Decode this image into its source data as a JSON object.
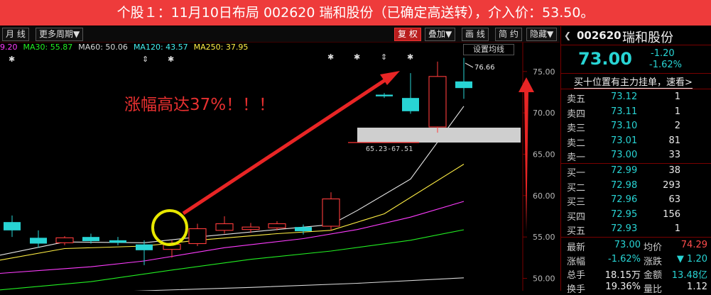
{
  "banner": "个股１：11月10日布局 002620 瑞和股份（已确定高送转），介入价：53.50。",
  "toolbar": {
    "month": "月 线",
    "period": "更多周期▼",
    "fuquan": "复 权",
    "overlay": "叠加▼",
    "draw": "画 线",
    "simple": "简 约",
    "hide": "隐藏▼"
  },
  "ma_legend": [
    {
      "text": "9.20",
      "color": "#ff3cff"
    },
    {
      "text": "MA30: 55.87",
      "color": "#22ee22"
    },
    {
      "text": "MA60: 50.06",
      "color": "#d8d8d8"
    },
    {
      "text": "MA120: 43.57",
      "color": "#44eeee"
    },
    {
      "text": "MA250: 37.95",
      "color": "#ffee44"
    }
  ],
  "set_ma_label": "设置均线",
  "annotation": "涨幅高达37%！！！",
  "gap_label": "65.23-67.51",
  "high_label": "76.66",
  "chart_data": {
    "type": "candlestick",
    "ylim": [
      48.5,
      78.5
    ],
    "yticks": [
      "75.00",
      "70.00",
      "65.00",
      "60.00",
      "55.00",
      "50.00"
    ],
    "yvals": [
      75,
      70,
      65,
      60,
      55,
      50
    ],
    "candles": [
      {
        "o": 56.8,
        "c": 55.8,
        "h": 57.6,
        "l": 55.0,
        "x": 17
      },
      {
        "o": 54.9,
        "c": 54.2,
        "h": 55.8,
        "l": 53.7,
        "x": 54
      },
      {
        "o": 54.3,
        "c": 54.9,
        "h": 55.1,
        "l": 54.0,
        "x": 91
      },
      {
        "o": 55.0,
        "c": 54.5,
        "h": 55.4,
        "l": 54.2,
        "x": 128
      },
      {
        "o": 54.6,
        "c": 54.3,
        "h": 55.0,
        "l": 54.0,
        "x": 166
      },
      {
        "o": 54.1,
        "c": 53.4,
        "h": 54.6,
        "l": 51.6,
        "x": 203
      },
      {
        "o": 53.5,
        "c": 54.1,
        "h": 54.6,
        "l": 52.5,
        "x": 242
      },
      {
        "o": 54.2,
        "c": 56.0,
        "h": 56.6,
        "l": 53.9,
        "x": 278
      },
      {
        "o": 55.8,
        "c": 56.6,
        "h": 57.5,
        "l": 55.4,
        "x": 316
      },
      {
        "o": 55.9,
        "c": 56.2,
        "h": 56.7,
        "l": 55.5,
        "x": 353
      },
      {
        "o": 56.1,
        "c": 56.6,
        "h": 56.9,
        "l": 55.8,
        "x": 390
      },
      {
        "o": 56.2,
        "c": 55.7,
        "h": 56.5,
        "l": 55.3,
        "x": 427
      },
      {
        "o": 56.3,
        "c": 59.6,
        "h": 60.4,
        "l": 55.8,
        "x": 466
      },
      {
        "o": 72.2,
        "c": 72.0,
        "h": 72.4,
        "l": 71.8,
        "x": 541
      },
      {
        "o": 71.8,
        "c": 70.2,
        "h": 74.8,
        "l": 69.9,
        "x": 578
      },
      {
        "o": 68.3,
        "c": 74.4,
        "h": 76.2,
        "l": 67.6,
        "x": 616
      },
      {
        "o": 73.8,
        "c": 73.0,
        "h": 76.66,
        "l": 71.7,
        "x": 653
      }
    ],
    "ma_lines": [
      {
        "name": "MA5",
        "color": "#e8e8e8",
        "pts": [
          [
            0,
            52.8
          ],
          [
            91,
            54.4
          ],
          [
            203,
            54.3
          ],
          [
            278,
            55.0
          ],
          [
            390,
            55.9
          ],
          [
            466,
            56.5
          ],
          [
            503,
            58.2
          ],
          [
            578,
            62.0
          ],
          [
            653,
            70.8
          ]
        ]
      },
      {
        "name": "MA10",
        "color": "#ffee44",
        "pts": [
          [
            0,
            52.2
          ],
          [
            91,
            53.6
          ],
          [
            203,
            53.9
          ],
          [
            278,
            54.6
          ],
          [
            390,
            55.4
          ],
          [
            466,
            55.8
          ],
          [
            541,
            57.8
          ],
          [
            653,
            63.8
          ]
        ]
      },
      {
        "name": "MA20",
        "color": "#ff3cff",
        "pts": [
          [
            0,
            50.6
          ],
          [
            128,
            51.4
          ],
          [
            203,
            52.1
          ],
          [
            316,
            53.7
          ],
          [
            427,
            54.8
          ],
          [
            503,
            55.9
          ],
          [
            578,
            57.4
          ],
          [
            653,
            59.3
          ]
        ]
      },
      {
        "name": "MA30",
        "color": "#22ee22",
        "pts": [
          [
            0,
            48.6
          ],
          [
            128,
            49.6
          ],
          [
            242,
            51.0
          ],
          [
            353,
            52.3
          ],
          [
            466,
            53.3
          ],
          [
            578,
            54.6
          ],
          [
            653,
            55.87
          ]
        ]
      },
      {
        "name": "MA60",
        "color": "#d8d8d8",
        "pts": [
          [
            80,
            48.1
          ],
          [
            203,
            48.5
          ],
          [
            353,
            48.9
          ],
          [
            503,
            49.4
          ],
          [
            653,
            50.06
          ]
        ]
      }
    ]
  },
  "panel": {
    "code": "002620",
    "name": "瑞和股份",
    "price": "73.00",
    "change": "-1.20",
    "change_pct": "-1.62%",
    "link": "买十位置有主力挂单，速看>",
    "sell": [
      {
        "label": "卖五",
        "price": "73.12",
        "vol": "1"
      },
      {
        "label": "卖四",
        "price": "73.11",
        "vol": "1"
      },
      {
        "label": "卖三",
        "price": "73.10",
        "vol": "2"
      },
      {
        "label": "卖二",
        "price": "73.01",
        "vol": "81"
      },
      {
        "label": "卖一",
        "price": "73.00",
        "vol": "33"
      }
    ],
    "buy": [
      {
        "label": "买一",
        "price": "72.99",
        "vol": "38"
      },
      {
        "label": "买二",
        "price": "72.98",
        "vol": "293"
      },
      {
        "label": "买三",
        "price": "72.96",
        "vol": "63"
      },
      {
        "label": "买四",
        "price": "72.95",
        "vol": "156"
      },
      {
        "label": "买五",
        "price": "72.93",
        "vol": "1"
      }
    ],
    "stats": [
      {
        "l1": "最新",
        "v1": "73.00",
        "c1": "cyan",
        "l2": "均价",
        "v2": "74.29",
        "c2": "red"
      },
      {
        "l1": "涨幅",
        "v1": "-1.62%",
        "c1": "cyan",
        "l2": "涨跌",
        "v2": "▼ 1.20",
        "c2": "cyan"
      },
      {
        "l1": "总手",
        "v1": "18.15万",
        "c1": "white",
        "l2": "金额",
        "v2": "13.48亿",
        "c2": "cyan"
      },
      {
        "l1": "换手",
        "v1": "19.36%",
        "c1": "white",
        "l2": "量比",
        "v2": "1.12",
        "c2": "white"
      }
    ]
  }
}
